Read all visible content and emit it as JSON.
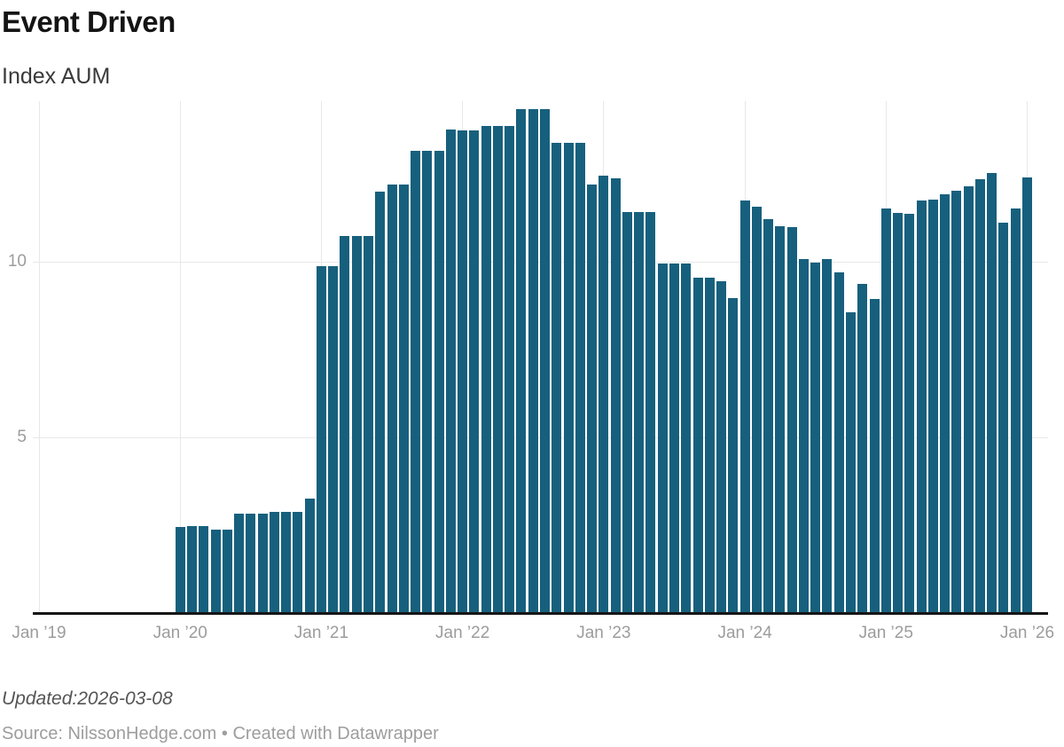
{
  "header": {
    "title": "Event Driven",
    "subtitle": "Index AUM"
  },
  "footer": {
    "updated": "Updated:2026-03-08",
    "source": "Source: NilssonHedge.com • Created with Datawrapper"
  },
  "colors": {
    "bar": "#17607d",
    "gridline": "#e8e8e8",
    "axis_line": "#161616",
    "tick_label": "#9c9c9c",
    "background": "#ffffff"
  },
  "chart_data": {
    "type": "bar",
    "title": "Event Driven",
    "subtitle": "Index AUM",
    "xlabel": "",
    "ylabel": "Index AUM",
    "ylim": [
      0,
      14.6
    ],
    "y_ticks": [
      5,
      10
    ],
    "grid": "light gray horizontal lines at y ticks and vertical lines at each January",
    "legend": "none",
    "x_tick_labels": [
      "Jan ’19",
      "Jan ’20",
      "Jan ’21",
      "Jan ’22",
      "Jan ’23",
      "Jan ’24",
      "Jan ’25",
      "Jan ’26"
    ],
    "x_tick_month_index": [
      0,
      12,
      24,
      36,
      48,
      60,
      72,
      84
    ],
    "first_bar_month_index": 12,
    "months": [
      "2020-01",
      "2020-02",
      "2020-03",
      "2020-04",
      "2020-05",
      "2020-06",
      "2020-07",
      "2020-08",
      "2020-09",
      "2020-10",
      "2020-11",
      "2020-12",
      "2021-01",
      "2021-02",
      "2021-03",
      "2021-04",
      "2021-05",
      "2021-06",
      "2021-07",
      "2021-08",
      "2021-09",
      "2021-10",
      "2021-11",
      "2021-12",
      "2022-01",
      "2022-02",
      "2022-03",
      "2022-04",
      "2022-05",
      "2022-06",
      "2022-07",
      "2022-08",
      "2022-09",
      "2022-10",
      "2022-11",
      "2022-12",
      "2023-01",
      "2023-02",
      "2023-03",
      "2023-04",
      "2023-05",
      "2023-06",
      "2023-07",
      "2023-08",
      "2023-09",
      "2023-10",
      "2023-11",
      "2023-12",
      "2024-01",
      "2024-02",
      "2024-03",
      "2024-04",
      "2024-05",
      "2024-06",
      "2024-07",
      "2024-08",
      "2024-09",
      "2024-10",
      "2024-11",
      "2024-12",
      "2025-01",
      "2025-02",
      "2025-03",
      "2025-04",
      "2025-05",
      "2025-06",
      "2025-07",
      "2025-08",
      "2025-09",
      "2025-10",
      "2025-11",
      "2025-12",
      "2026-01"
    ],
    "values": [
      2.44,
      2.47,
      2.47,
      2.37,
      2.37,
      2.82,
      2.82,
      2.84,
      2.89,
      2.89,
      2.89,
      3.25,
      9.88,
      9.88,
      10.72,
      10.72,
      10.72,
      11.99,
      12.19,
      12.2,
      13.15,
      13.16,
      13.15,
      13.76,
      13.73,
      13.74,
      13.86,
      13.86,
      13.86,
      14.34,
      14.34,
      14.34,
      13.38,
      13.38,
      13.38,
      12.2,
      12.45,
      12.38,
      11.41,
      11.41,
      11.42,
      9.94,
      9.94,
      9.94,
      9.54,
      9.54,
      9.44,
      8.97,
      11.74,
      11.57,
      11.2,
      11.02,
      10.98,
      10.08,
      9.98,
      10.07,
      9.7,
      8.55,
      9.38,
      8.95,
      11.52,
      11.4,
      11.37,
      11.73,
      11.78,
      11.92,
      12.02,
      12.14,
      12.35,
      12.52,
      11.1,
      11.52,
      12.4
    ]
  }
}
